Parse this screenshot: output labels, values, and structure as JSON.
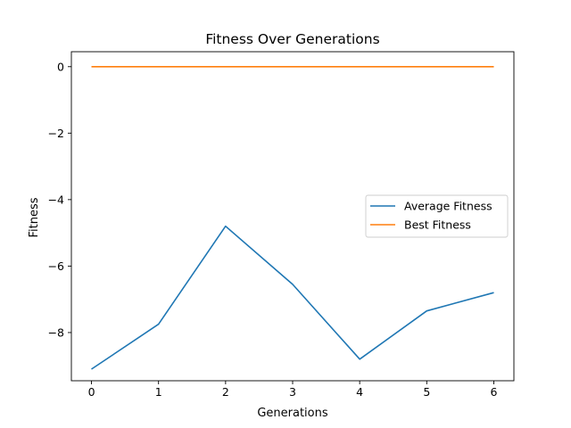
{
  "chart_data": {
    "type": "line",
    "title": "Fitness Over Generations",
    "xlabel": "Generations",
    "ylabel": "Fitness",
    "x": [
      0,
      1,
      2,
      3,
      4,
      5,
      6
    ],
    "xticks": [
      "0",
      "1",
      "2",
      "3",
      "4",
      "5",
      "6"
    ],
    "yticks": [
      0,
      -2,
      -4,
      -6,
      -8
    ],
    "ytick_labels": [
      "0",
      "−2",
      "−4",
      "−6",
      "−8"
    ],
    "xlim": [
      -0.3,
      6.3
    ],
    "ylim": [
      -9.45,
      0.45
    ],
    "grid": false,
    "legend_position": "center-right",
    "series": [
      {
        "name": "Average Fitness",
        "color": "#1f77b4",
        "values": [
          -9.1,
          -7.75,
          -4.8,
          -6.55,
          -8.8,
          -7.35,
          -6.8
        ]
      },
      {
        "name": "Best Fitness",
        "color": "#ff7f0e",
        "values": [
          0,
          0,
          0,
          0,
          0,
          0,
          0
        ]
      }
    ]
  }
}
